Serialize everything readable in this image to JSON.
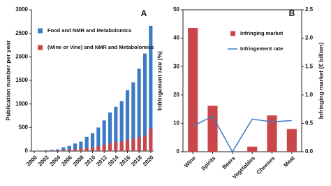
{
  "chart_data": [
    {
      "type": "bar",
      "panel_label": "A",
      "ylabel": "Publication number per year",
      "categories": [
        "2000",
        null,
        "2002",
        null,
        "2004",
        null,
        "2006",
        null,
        "2008",
        null,
        "2010",
        null,
        "2012",
        null,
        "2014",
        null,
        "2016",
        null,
        "2018",
        null,
        "2020"
      ],
      "series": [
        {
          "name": "Food and NMR and Metabolomics",
          "color": "#3d7bc4",
          "values": [
            5,
            10,
            15,
            25,
            35,
            80,
            110,
            160,
            200,
            300,
            380,
            500,
            650,
            820,
            940,
            1060,
            1290,
            1460,
            1750,
            2070,
            2660
          ]
        },
        {
          "name": "(Wine or Vine) and NMR and Metabolomics",
          "color": "#c9474a",
          "values": [
            2,
            3,
            5,
            8,
            10,
            20,
            30,
            40,
            50,
            60,
            80,
            100,
            130,
            160,
            190,
            200,
            240,
            260,
            290,
            330,
            480
          ]
        }
      ],
      "ylim": [
        0,
        3000
      ],
      "yticks": [
        0,
        500,
        1000,
        1500,
        2000,
        2500,
        3000
      ]
    },
    {
      "type": "bar",
      "panel_label": "B",
      "ylabel": "Infringement rate (%)",
      "y2label": "Infringing market (€ billion)",
      "categories": [
        "Wine",
        "Spirits",
        "Beers",
        "Vegetables",
        "Cheeses",
        "Meat"
      ],
      "series": [
        {
          "name": "Infringing market",
          "type": "bar",
          "axis": "y2",
          "color": "#c9474a",
          "values": [
            2.18,
            0.81,
            0,
            0.09,
            0.64,
            0.4
          ]
        },
        {
          "name": "Infringement rate",
          "type": "line",
          "color": "#3d7bc4",
          "values": [
            9,
            12.5,
            0,
            11.5,
            10.5,
            11
          ]
        }
      ],
      "ylim": [
        0,
        50
      ],
      "yticks": [
        0,
        10,
        20,
        30,
        40,
        50
      ],
      "y2lim": [
        0,
        2.5
      ],
      "y2ticks": [
        {
          "value": 0,
          "label": "0.0"
        },
        0.5,
        {
          "value": 1,
          "label": "1.0"
        },
        1.5,
        {
          "value": 2,
          "label": "2.0"
        },
        2.5
      ]
    }
  ]
}
